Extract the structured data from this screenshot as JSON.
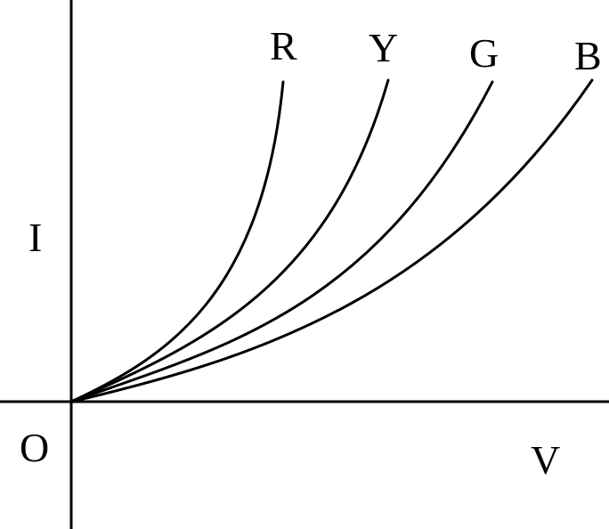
{
  "diagram": {
    "axes": {
      "y_label": "I",
      "x_label": "V",
      "origin_label": "O"
    },
    "curves": [
      {
        "label": "R"
      },
      {
        "label": "Y"
      },
      {
        "label": "G"
      },
      {
        "label": "B"
      }
    ],
    "colors": {
      "line": "#000000",
      "background": "#ffffff"
    }
  }
}
